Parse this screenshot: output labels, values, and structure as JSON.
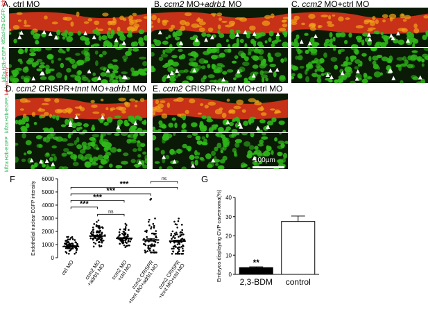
{
  "panels": {
    "A": {
      "letter": "A.",
      "label": "ctrl MO"
    },
    "B": {
      "letter": "B.",
      "gene": "ccm2",
      "mid": " MO+",
      "gene2": "adrb1",
      "tail": " MO"
    },
    "C": {
      "letter": "C.",
      "gene": "ccm2",
      "tail": " MO+ctrl MO"
    },
    "D": {
      "letter": "D.",
      "gene": "ccm2",
      "mid": " CRISPR+",
      "gene2": "tnnt",
      "mid2": " MO+",
      "gene3": "adrb1",
      "tail": " MO"
    },
    "E": {
      "letter": "E.",
      "gene": "ccm2",
      "mid": " CRISPR+",
      "gene2": "tnnt",
      "tail": " MO+ctrl MO"
    }
  },
  "side_labels": {
    "merge_green": "klf2a:H2b-EGFP;",
    "merge_red": "kdrl:mCherry",
    "green_only": "klf2a:H2b-EGFP"
  },
  "scale_bar": "100µm",
  "colors": {
    "green": "#22b14c",
    "red": "#d9262a",
    "tissue_green": "#2fb81a",
    "tissue_red": "#e8361c"
  },
  "chart_data": [
    {
      "panel": "F",
      "type": "scatter",
      "ylabel": "Endothelial nuclear EGFP intensity",
      "ylim": [
        0,
        6000
      ],
      "yticks": [
        0,
        1000,
        2000,
        3000,
        4000,
        5000,
        6000
      ],
      "categories": [
        "ctrl MO",
        "ccm2 MO +adrb1 MO",
        "ccm2 MO +ctrl MO",
        "ccm2 CRISPR +tnnt MO+adrb1 MO",
        "ccm2 CRISPR +tnnt MO+ctrl MO"
      ],
      "category_lines": [
        [
          "ctrl MO"
        ],
        [
          "ccm2 MO",
          "+adrb1 MO"
        ],
        [
          "ccm2 MO",
          "+ctrl MO"
        ],
        [
          "ccm2 CRISPR",
          "+tnnt MO+adrb1 MO"
        ],
        [
          "ccm2 CRISPR",
          "+tnnt MO+ctrl MO"
        ]
      ],
      "means": [
        850,
        1650,
        1480,
        1350,
        1260
      ],
      "sem": [
        60,
        70,
        50,
        90,
        80
      ],
      "spread": [
        [
          300,
          1900
        ],
        [
          850,
          3000
        ],
        [
          800,
          2600
        ],
        [
          400,
          4500
        ],
        [
          300,
          3900
        ]
      ],
      "comparisons": [
        {
          "from": 0,
          "to": 1,
          "label": "***"
        },
        {
          "from": 0,
          "to": 2,
          "label": "***"
        },
        {
          "from": 0,
          "to": 3,
          "label": "***"
        },
        {
          "from": 0,
          "to": 4,
          "label": "***"
        },
        {
          "from": 1,
          "to": 2,
          "label": "ns"
        },
        {
          "from": 3,
          "to": 4,
          "label": "ns"
        }
      ]
    },
    {
      "panel": "G",
      "type": "bar",
      "ylabel": "Embryos displaying CVP cavernoma(%)",
      "ylim": [
        0,
        40
      ],
      "yticks": [
        0,
        10,
        20,
        30,
        40
      ],
      "categories": [
        "2,3-BDM",
        "control"
      ],
      "values": [
        3.5,
        27.5
      ],
      "errors": [
        0.4,
        2.8
      ],
      "annotations": [
        "**",
        ""
      ]
    }
  ]
}
